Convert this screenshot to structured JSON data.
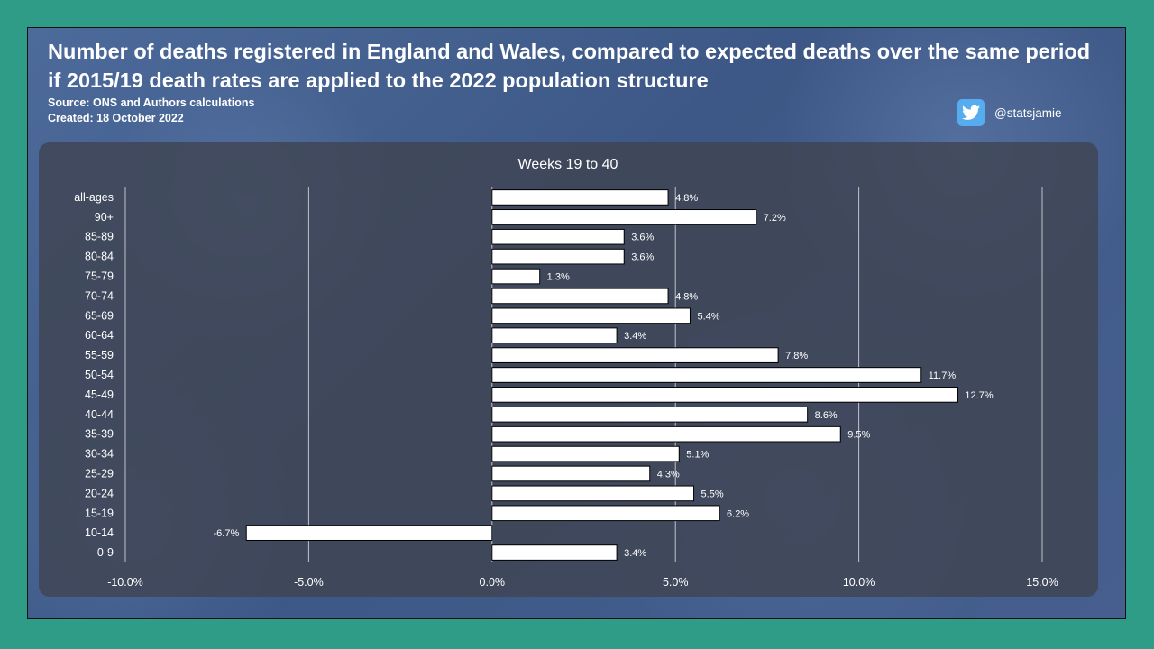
{
  "header": {
    "title_line1": "Number of deaths registered in England and Wales, compared to expected deaths over the same period",
    "title_line2": "if 2015/19 death rates are applied to the 2022 population structure",
    "source": "Source: ONS and Authors calculations",
    "created": "Created: 18 October 2022"
  },
  "social": {
    "icon": "twitter-icon",
    "handle": "@statsjamie",
    "color": "#55acee"
  },
  "colors": {
    "page_bg": "#2e9c87",
    "bar_fill": "#ffffff",
    "bar_stroke": "#000000",
    "chart_bg": "#404452"
  },
  "chart_data": {
    "type": "bar",
    "orientation": "horizontal",
    "title": "Weeks 19 to 40",
    "categories": [
      "all-ages",
      "90+",
      "85-89",
      "80-84",
      "75-79",
      "70-74",
      "65-69",
      "60-64",
      "55-59",
      "50-54",
      "45-49",
      "40-44",
      "35-39",
      "30-34",
      "25-29",
      "20-24",
      "15-19",
      "10-14",
      "0-9"
    ],
    "values": [
      4.8,
      7.2,
      3.6,
      3.6,
      1.3,
      4.8,
      5.4,
      3.4,
      7.8,
      11.7,
      12.7,
      8.6,
      9.5,
      5.1,
      4.3,
      5.5,
      6.2,
      -6.7,
      3.4
    ],
    "value_labels": [
      "4.8%",
      "7.2%",
      "3.6%",
      "3.6%",
      "1.3%",
      "4.8%",
      "5.4%",
      "3.4%",
      "7.8%",
      "11.7%",
      "12.7%",
      "8.6%",
      "9.5%",
      "5.1%",
      "4.3%",
      "5.5%",
      "6.2%",
      "-6.7%",
      "3.4%"
    ],
    "xlim": [
      -10,
      15
    ],
    "xticks": [
      -10,
      -5,
      0,
      5,
      10,
      15
    ],
    "xtick_labels": [
      "-10.0%",
      "-5.0%",
      "0.0%",
      "5.0%",
      "10.0%",
      "15.0%"
    ],
    "grid": true,
    "xlabel": "",
    "ylabel": ""
  }
}
